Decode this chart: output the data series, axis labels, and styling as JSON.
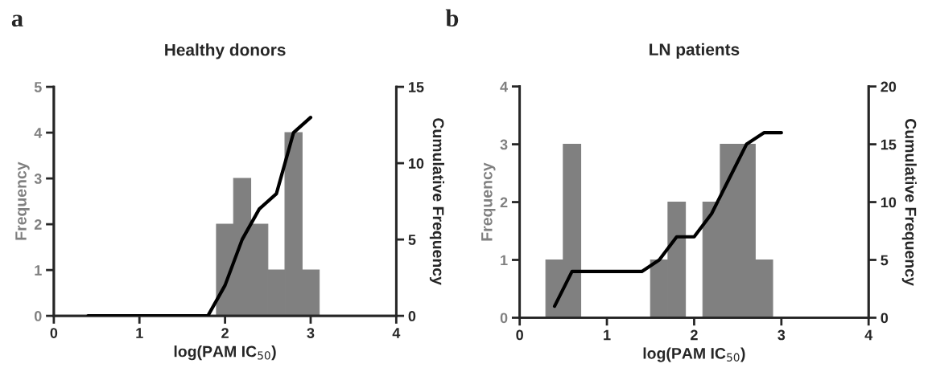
{
  "chart_data": [
    {
      "type": "histogram",
      "title": "Healthy donors",
      "xlabel": "log(PAM IC$_{50}$)",
      "ylabel": "Frequency",
      "y2label": "Cumulative Frequency",
      "annotations": [
        "a"
      ],
      "bins": [
        0.3,
        0.5,
        0.7,
        0.9,
        1.1,
        1.3,
        1.5,
        1.7,
        1.9,
        2.1,
        2.3,
        2.5,
        2.7,
        2.9,
        3.1
      ],
      "values": [
        0,
        0,
        0,
        0,
        0,
        0,
        0,
        0,
        2,
        3,
        2,
        1,
        4,
        1
      ],
      "color": "#808080",
      "series": [
        {
          "type": "line",
          "axis": "y2",
          "color": "#000000",
          "x": [
            0.4,
            0.6,
            0.8,
            1.0,
            1.2,
            1.4,
            1.6,
            1.8,
            2.0,
            2.2,
            2.4,
            2.6,
            2.8,
            3.0
          ],
          "values": [
            0,
            0,
            0,
            0,
            0,
            0,
            0,
            0,
            2,
            5,
            7,
            8,
            12,
            13
          ]
        }
      ],
      "xlim": [
        0,
        4
      ],
      "xticks": [
        0,
        1,
        2,
        3,
        4
      ],
      "ylim": [
        0,
        5
      ],
      "yticks": [
        0,
        1,
        2,
        3,
        4,
        5
      ],
      "y2lim": [
        0,
        15
      ],
      "y2ticks": [
        0,
        5,
        10,
        15
      ]
    },
    {
      "type": "histogram",
      "title": "LN patients",
      "xlabel": "log(PAM IC$_{50}$)",
      "ylabel": "Frequency",
      "y2label": "Cumulative Frequency",
      "annotations": [
        "b"
      ],
      "bins": [
        0.3,
        0.5,
        0.7,
        0.9,
        1.1,
        1.3,
        1.5,
        1.7,
        1.9,
        2.1,
        2.3,
        2.5,
        2.7,
        2.9,
        3.1
      ],
      "values": [
        1,
        3,
        0,
        0,
        0,
        0,
        1,
        2,
        0,
        2,
        3,
        3,
        1,
        0
      ],
      "color": "#808080",
      "series": [
        {
          "type": "line",
          "axis": "y2",
          "color": "#000000",
          "x": [
            0.4,
            0.6,
            0.8,
            1.0,
            1.2,
            1.4,
            1.6,
            1.8,
            2.0,
            2.2,
            2.4,
            2.6,
            2.8,
            3.0
          ],
          "values": [
            1,
            4,
            4,
            4,
            4,
            4,
            5,
            7,
            7,
            9,
            12,
            15,
            16,
            16
          ]
        }
      ],
      "xlim": [
        0,
        4
      ],
      "xticks": [
        0,
        1,
        2,
        3,
        4
      ],
      "ylim": [
        0,
        4
      ],
      "yticks": [
        0,
        1,
        2,
        3,
        4
      ],
      "y2lim": [
        0,
        20
      ],
      "y2ticks": [
        0,
        5,
        10,
        15,
        20
      ]
    }
  ]
}
